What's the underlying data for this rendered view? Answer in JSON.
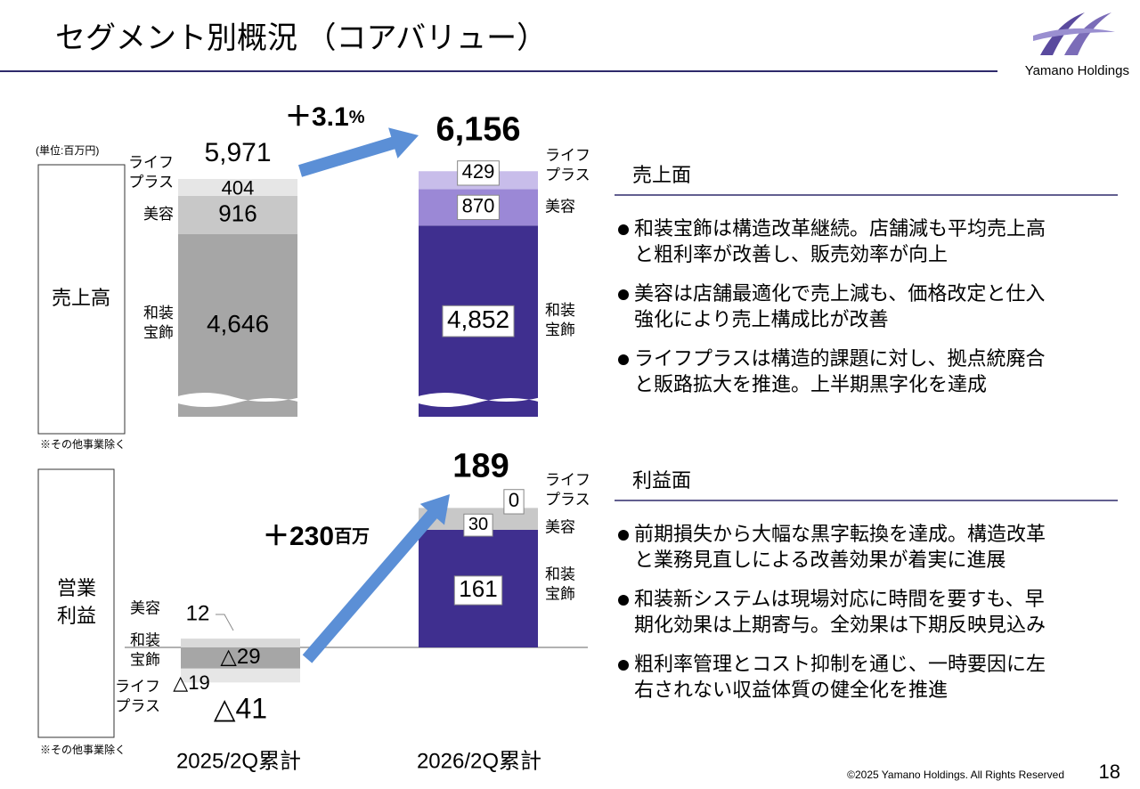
{
  "header": {
    "title": "セグメント別概況 （コアバリュー）",
    "company": "Yamano Holdings"
  },
  "segments": [
    [
      "和装",
      "宝飾"
    ],
    [
      "美容"
    ],
    [
      "ライフ",
      "プラス"
    ]
  ],
  "periods": [
    "2025/2Q累計",
    "2026/2Q累計"
  ],
  "sales": {
    "unit": "(単位:百万円)",
    "section_label": "売上高",
    "note": "※その他事業除く",
    "growth": {
      "value": "＋3.1",
      "unit": "%"
    },
    "bars": [
      {
        "total": {
          "label": "5,971",
          "value": 5971
        },
        "values": [
          {
            "label": "4,646",
            "value": 4646
          },
          {
            "label": "916",
            "value": 916
          },
          {
            "label": "404",
            "value": 404
          }
        ]
      },
      {
        "total": {
          "label": "6,156",
          "value": 6156
        },
        "values": [
          {
            "label": "4,852",
            "value": 4852
          },
          {
            "label": "870",
            "value": 870
          },
          {
            "label": "429",
            "value": 429
          }
        ]
      }
    ]
  },
  "profit": {
    "section_label": [
      "営業",
      "利益"
    ],
    "note": "※その他事業除く",
    "growth": {
      "value": "＋230",
      "unit": "百万"
    },
    "bars": [
      {
        "total": {
          "label": "△41",
          "value": -41
        },
        "values": [
          {
            "label": "△29",
            "value": -29
          },
          {
            "label": "12",
            "value": 12
          },
          {
            "label": "△19",
            "value": -19
          }
        ]
      },
      {
        "total": {
          "label": "189",
          "value": 189
        },
        "values": [
          {
            "label": "161",
            "value": 161
          },
          {
            "label": "30",
            "value": 30
          },
          {
            "label": "0",
            "value": 0
          }
        ]
      }
    ]
  },
  "commentary": [
    {
      "heading": "売上面",
      "bullets": [
        [
          "和装宝飾は構造改革継続。店舗減も平均売上高",
          "と粗利率が改善し、販売効率が向上"
        ],
        [
          "美容は店舗最適化で売上減も、価格改定と仕入",
          "強化により売上構成比が改善"
        ],
        [
          "ライフプラスは構造的課題に対し、拠点統廃合",
          "と販路拡大を推進。上半期黒字化を達成"
        ]
      ]
    },
    {
      "heading": "利益面",
      "bullets": [
        [
          "前期損失から大幅な黒字転換を達成。構造改革",
          "と業務見直しによる改善効果が着実に進展"
        ],
        [
          "和装新システムは現場対応に時間を要すも、早",
          "期化効果は上期寄与。全効果は下期反映見込み"
        ],
        [
          "粗利率管理とコスト抑制を通じ、一時要因に左",
          "右されない収益体質の健全化を推進"
        ]
      ]
    }
  ],
  "footer": {
    "copyright": "©2025 Yamano Holdings. All Rights Reserved",
    "page": "18"
  }
}
